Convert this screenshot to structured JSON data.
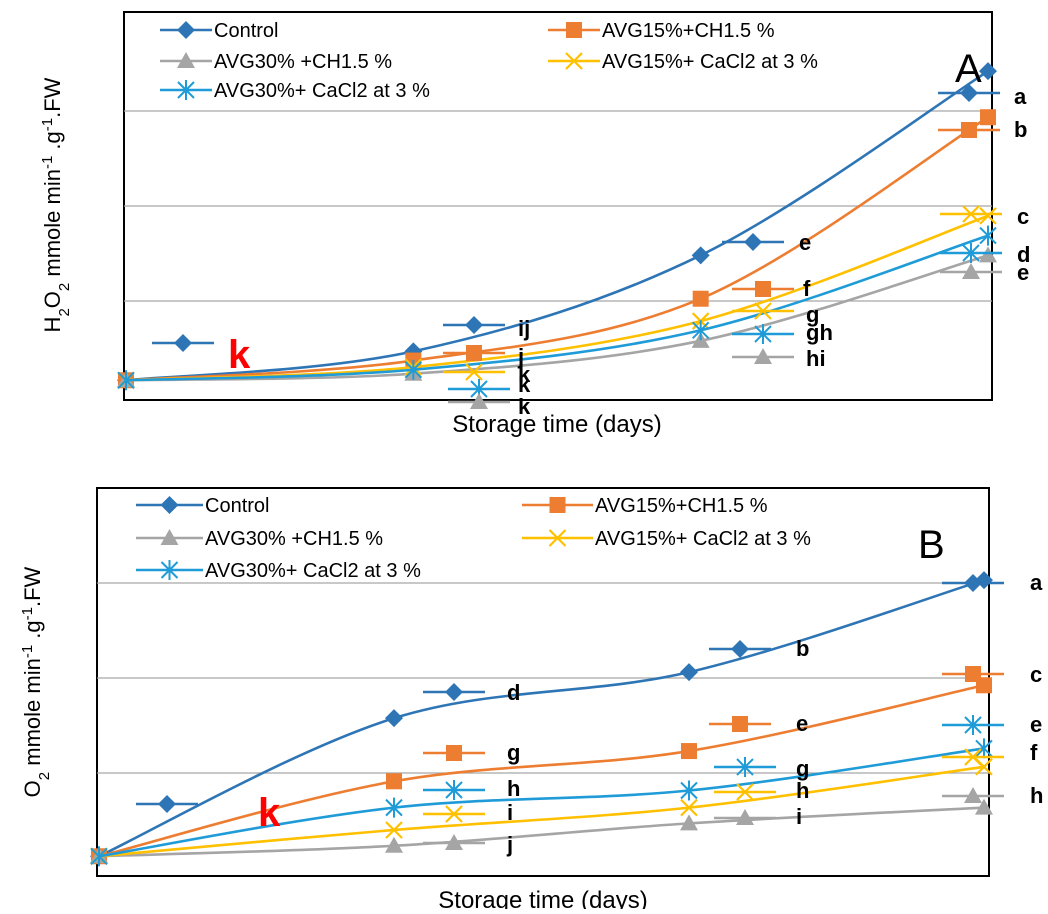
{
  "chart_data": [
    {
      "type": "line",
      "panel": "A",
      "xlabel": "Storage time (days)",
      "ylabel_parts": [
        "H",
        "2",
        "O",
        "2",
        " mmole min",
        "-1",
        " .g",
        "-1",
        ".FW"
      ],
      "gridlines": true,
      "legend_position": "top",
      "x": [
        0,
        1,
        2,
        3
      ],
      "ylim": [
        -0.15,
        2.8
      ],
      "series": [
        {
          "name": "Control",
          "color": "#2e75b6",
          "marker": "diamond",
          "values": [
            0,
            0.22,
            0.95,
            2.35
          ]
        },
        {
          "name": "AVG15%+CH1.5 %",
          "color": "#ed7d31",
          "marker": "square",
          "values": [
            0,
            0.15,
            0.62,
            2.0
          ]
        },
        {
          "name": "AVG30% +CH1.5 %",
          "color": "#a5a5a5",
          "marker": "triangle",
          "values": [
            0,
            0.05,
            0.3,
            0.95
          ]
        },
        {
          "name": "AVG15%+ CaCl2  at 3 %",
          "color": "#ffc000",
          "marker": "x",
          "values": [
            0,
            0.1,
            0.45,
            1.25
          ]
        },
        {
          "name": "AVG30%+  CaCl2  at 3 %",
          "color": "#1f9bd7",
          "marker": "star",
          "values": [
            0,
            0.08,
            0.38,
            1.1
          ]
        }
      ],
      "annotations": [
        {
          "text": "k",
          "color": "#ff0000",
          "style": "large"
        },
        {
          "text": "ij"
        },
        {
          "text": "j"
        },
        {
          "text": "k"
        },
        {
          "text": "k"
        },
        {
          "text": "k"
        },
        {
          "text": "e"
        },
        {
          "text": "f"
        },
        {
          "text": "g"
        },
        {
          "text": "gh"
        },
        {
          "text": "hi"
        },
        {
          "text": "a"
        },
        {
          "text": "b"
        },
        {
          "text": "c"
        },
        {
          "text": "d"
        },
        {
          "text": "e"
        }
      ]
    },
    {
      "type": "line",
      "panel": "B",
      "xlabel": "Storage time (days)",
      "ylabel_parts": [
        "O",
        "2",
        " mmole min",
        "-1",
        " .g",
        "-1",
        ".FW"
      ],
      "gridlines": true,
      "legend_position": "top",
      "x": [
        0,
        1,
        2,
        3
      ],
      "ylim": [
        -0.15,
        2.8
      ],
      "series": [
        {
          "name": "Control",
          "color": "#2e75b6",
          "marker": "diamond",
          "values": [
            0,
            1.05,
            1.4,
            2.1
          ]
        },
        {
          "name": "AVG15%+CH1.5 %",
          "color": "#ed7d31",
          "marker": "square",
          "values": [
            0,
            0.57,
            0.8,
            1.3
          ]
        },
        {
          "name": "AVG30% +CH1.5 %",
          "color": "#a5a5a5",
          "marker": "triangle",
          "values": [
            0,
            0.08,
            0.25,
            0.37
          ]
        },
        {
          "name": "AVG15%+ CaCl2  at 3 %",
          "color": "#ffc000",
          "marker": "x",
          "values": [
            0,
            0.2,
            0.37,
            0.68
          ]
        },
        {
          "name": "AVG30%+  CaCl2  at 3 %",
          "color": "#1f9bd7",
          "marker": "star",
          "values": [
            0,
            0.37,
            0.5,
            0.82
          ]
        }
      ],
      "annotations": [
        {
          "text": "k",
          "color": "#ff0000",
          "style": "large"
        },
        {
          "text": "d"
        },
        {
          "text": "g"
        },
        {
          "text": "h"
        },
        {
          "text": "i"
        },
        {
          "text": "j"
        },
        {
          "text": "b"
        },
        {
          "text": "e"
        },
        {
          "text": "g"
        },
        {
          "text": "h"
        },
        {
          "text": "i"
        },
        {
          "text": "a"
        },
        {
          "text": "c"
        },
        {
          "text": "e"
        },
        {
          "text": "f"
        },
        {
          "text": "h"
        }
      ]
    }
  ]
}
